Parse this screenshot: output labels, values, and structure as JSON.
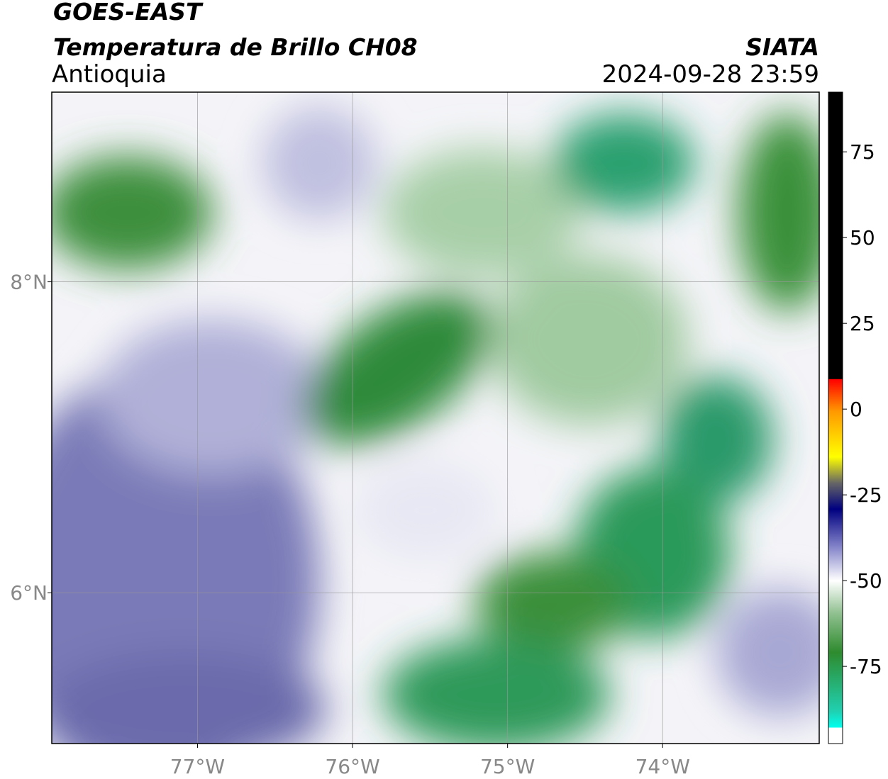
{
  "header": {
    "title": "GOES-EAST",
    "subtitle": "Temperatura de Brillo CH08",
    "source": "SIATA",
    "region": "Antioquia",
    "datetime": "2024-09-28 23:59"
  },
  "chart_data": {
    "type": "map",
    "xlim": [
      -77.94,
      -72.99
    ],
    "ylim": [
      5.03,
      9.22
    ],
    "xticks": [
      {
        "value": -77,
        "label": "77°W"
      },
      {
        "value": -76,
        "label": "76°W"
      },
      {
        "value": -75,
        "label": "75°W"
      },
      {
        "value": -74,
        "label": "74°W"
      }
    ],
    "yticks": [
      {
        "value": 6,
        "label": "6°N"
      },
      {
        "value": 8,
        "label": "8°N"
      }
    ],
    "grid": true,
    "colorbar": {
      "lim": [
        -97.5,
        92.4
      ],
      "ticks": [
        -75,
        -50,
        -25,
        0,
        25,
        50,
        75
      ]
    }
  }
}
